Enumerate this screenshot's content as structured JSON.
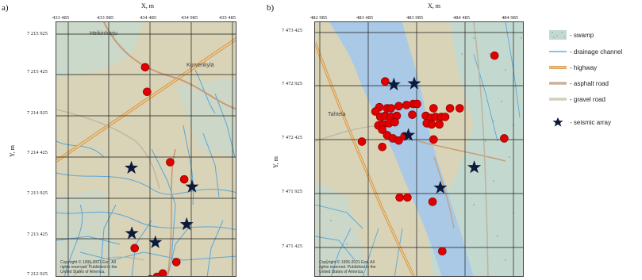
{
  "colors": {
    "background_land": "#d9d4b8",
    "swamp": "#bcd6cf",
    "river": "#a9c9e6",
    "drainage": "#5aa6d9",
    "highway": "#d8a15a",
    "asphalt": "#c89b78",
    "gravel": "#c9c2b2",
    "grid": "#1a1a1a",
    "marker_red": "#e00000",
    "marker_star": "#0e1a3c"
  },
  "panel_a": {
    "label": "a)",
    "x_axis_title": "X, m",
    "y_axis_title": "Y, m",
    "x_ticks": [
      "433 485",
      "433 985",
      "434 485",
      "434 985",
      "435 485"
    ],
    "y_ticks": [
      "7 215 925",
      "7 215 425",
      "7 214 925",
      "7 214 425",
      "7 213 925",
      "7 213 425",
      "7 212 925"
    ],
    "places": [
      "Heikinharju",
      "Korvenkylä"
    ],
    "copyright": [
      "Copyright © 1995-2021 Esri. All",
      "rights reserved. Published in the",
      "United States of America."
    ],
    "receivers": [
      [
        434417,
        7215520
      ],
      [
        434440,
        7215220
      ],
      [
        434720,
        7214360
      ],
      [
        434890,
        7214150
      ],
      [
        434290,
        7213310
      ],
      [
        434795,
        7213140
      ],
      [
        434630,
        7213000
      ],
      [
        434560,
        7212960
      ],
      [
        434480,
        7212930
      ],
      [
        434740,
        7212920
      ],
      [
        434460,
        7212850
      ]
    ],
    "arrays": [
      [
        434250,
        7214290
      ],
      [
        434985,
        7214060
      ],
      [
        434920,
        7213600
      ],
      [
        434255,
        7213490
      ],
      [
        434540,
        7213380
      ]
    ]
  },
  "panel_b": {
    "label": "b)",
    "x_axis_title": "X, m",
    "y_axis_title": "Y, m",
    "x_ticks": [
      "482 985",
      "483 485",
      "483 985",
      "484 485",
      "484 985"
    ],
    "y_ticks": [
      "7 473 425",
      "7 472 925",
      "7 472 425",
      "7 471 925",
      "7 471 425"
    ],
    "places": [
      "Tahtela"
    ],
    "copyright": [
      "Copyright © 1995-2021 Esri. All",
      "rights reserved. Published in the",
      "United States of America."
    ],
    "receivers": [
      [
        484790,
        7473210
      ],
      [
        483660,
        7472970
      ],
      [
        483950,
        7472760
      ],
      [
        483600,
        7472730
      ],
      [
        483680,
        7472720
      ],
      [
        483720,
        7472720
      ],
      [
        483800,
        7472740
      ],
      [
        483880,
        7472750
      ],
      [
        483940,
        7472660
      ],
      [
        483990,
        7472760
      ],
      [
        484160,
        7472720
      ],
      [
        484330,
        7472720
      ],
      [
        484430,
        7472720
      ],
      [
        483560,
        7472690
      ],
      [
        483610,
        7472640
      ],
      [
        483660,
        7472650
      ],
      [
        483720,
        7472640
      ],
      [
        483780,
        7472650
      ],
      [
        484080,
        7472650
      ],
      [
        484130,
        7472630
      ],
      [
        484180,
        7472640
      ],
      [
        484240,
        7472640
      ],
      [
        484280,
        7472640
      ],
      [
        483590,
        7472560
      ],
      [
        483640,
        7472570
      ],
      [
        483700,
        7472580
      ],
      [
        483760,
        7472590
      ],
      [
        484090,
        7472580
      ],
      [
        484140,
        7472570
      ],
      [
        484220,
        7472570
      ],
      [
        483630,
        7472520
      ],
      [
        483680,
        7472470
      ],
      [
        483740,
        7472440
      ],
      [
        483800,
        7472420
      ],
      [
        483860,
        7472460
      ],
      [
        484160,
        7472430
      ],
      [
        483420,
        7472410
      ],
      [
        483630,
        7472360
      ],
      [
        484890,
        7472440
      ],
      [
        483810,
        7471890
      ],
      [
        483890,
        7471890
      ],
      [
        484150,
        7471850
      ],
      [
        484250,
        7471390
      ]
    ],
    "arrays": [
      [
        483750,
        7472940
      ],
      [
        483960,
        7472950
      ],
      [
        483900,
        7472470
      ],
      [
        484230,
        7471980
      ],
      [
        484580,
        7472170
      ]
    ]
  },
  "legend": {
    "swamp": "- swamp",
    "drainage": "- drainage channel",
    "highway": "- highway",
    "asphalt": "- asphalt road",
    "gravel": "- gravel road",
    "array": "- seismic array"
  }
}
